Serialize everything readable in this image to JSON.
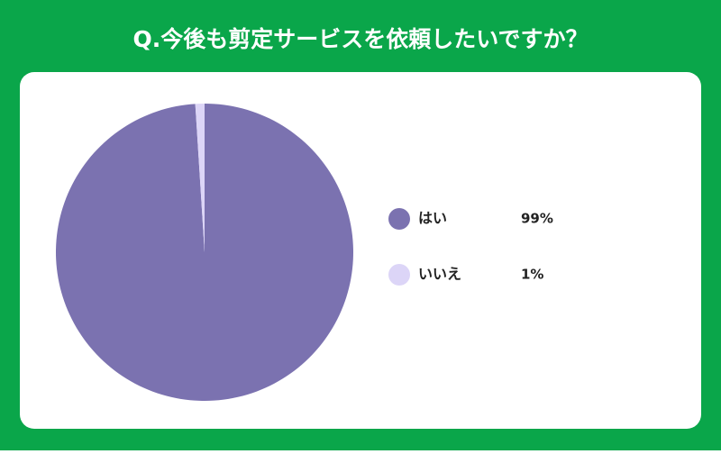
{
  "chart_data": {
    "type": "pie",
    "title": "Q.今後も剪定サービスを依頼したいですか？",
    "categories": [
      "はい",
      "いいえ"
    ],
    "values": [
      99,
      1
    ],
    "value_labels": [
      "99%",
      "1%"
    ],
    "colors": [
      "#7b72b0",
      "#dcd5f7"
    ],
    "legend": "right"
  }
}
